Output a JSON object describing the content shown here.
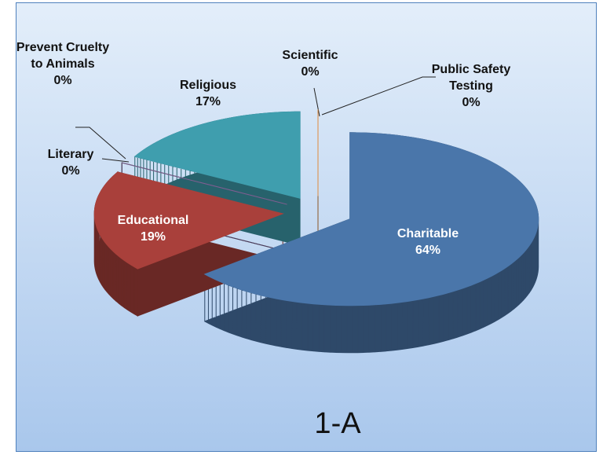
{
  "chart_data": {
    "type": "pie",
    "title": "1-A",
    "categories": [
      "Charitable",
      "Educational",
      "Literary",
      "Prevent Cruelty to Animals",
      "Religious",
      "Scientific",
      "Public Safety Testing"
    ],
    "values": [
      64,
      19,
      0,
      0,
      17,
      0,
      0
    ],
    "value_labels": [
      "64%",
      "19%",
      "0%",
      "0%",
      "17%",
      "0%",
      "0%"
    ],
    "colors": [
      "#4a76aa",
      "#a9403b",
      "#5b6b24",
      "#7b5c9c",
      "#3f9eae",
      "#c9c9c9",
      "#e08a3c"
    ]
  }
}
